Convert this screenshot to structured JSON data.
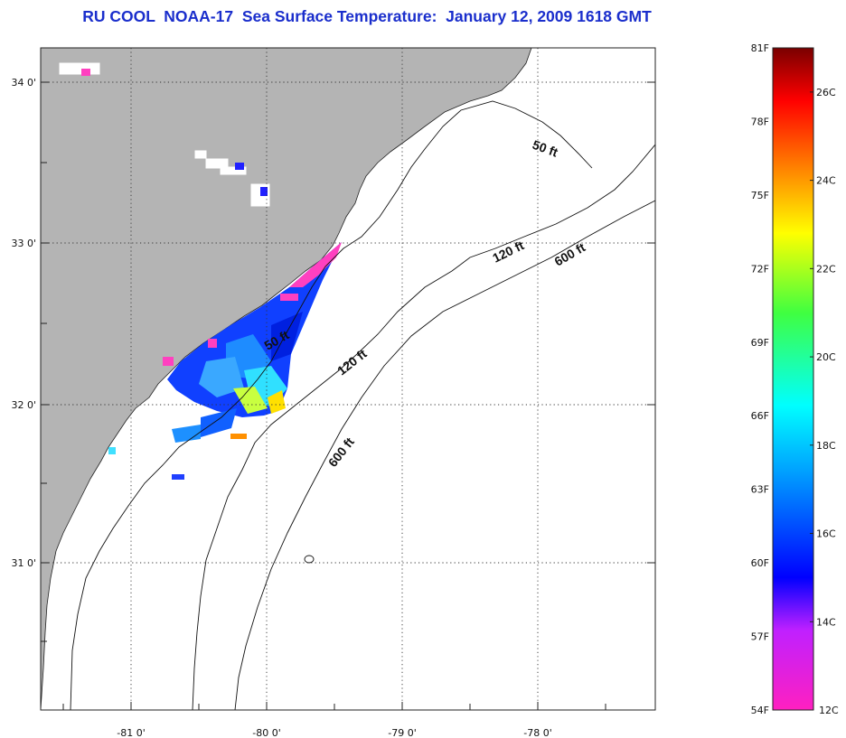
{
  "title": "RU COOL  NOAA-17  Sea Surface Temperature:  January 12, 2009 1618 GMT",
  "map": {
    "longitude_range": [
      -81.5,
      -77.25
    ],
    "latitude_range": [
      30.1,
      34.2
    ],
    "lon_ticks": [
      {
        "value": -81,
        "label": "-81 0'"
      },
      {
        "value": -80,
        "label": "-80 0'"
      },
      {
        "value": -79,
        "label": "-79 0'"
      },
      {
        "value": -78,
        "label": "-78 0'"
      }
    ],
    "lat_ticks": [
      {
        "value": 34,
        "label": "34 0'"
      },
      {
        "value": 33,
        "label": "33 0'"
      },
      {
        "value": 32,
        "label": "32 0'"
      },
      {
        "value": 31,
        "label": "31 0'"
      }
    ],
    "grid": "dotted",
    "contour_labels": {
      "c50a": "50 ft",
      "c50b": "50 ft",
      "c120a": "120 ft",
      "c120b": "120 ft",
      "c600a": "600 ft",
      "c600b": "600 ft"
    },
    "land_color": "#b4b4b4",
    "ocean_color": "#ffffff"
  },
  "colorbar": {
    "fahrenheit_labels": [
      "81F",
      "78F",
      "75F",
      "72F",
      "69F",
      "66F",
      "63F",
      "60F",
      "57F",
      "54F"
    ],
    "celsius_labels": [
      "26C",
      "24C",
      "22C",
      "20C",
      "18C",
      "16C",
      "14C",
      "12C"
    ],
    "range_celsius": [
      12,
      27
    ]
  }
}
